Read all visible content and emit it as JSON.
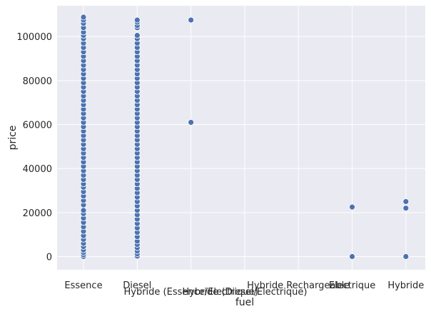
{
  "chart_data": {
    "type": "scatter",
    "xlabel": "fuel",
    "ylabel": "price",
    "ylim": [
      -6000,
      114000
    ],
    "grid": true,
    "colors": {
      "background": "#eaeaf2",
      "grid": "#ffffff",
      "marker": "#4c72b0",
      "marker_edge": "#ffffff"
    },
    "categories": [
      "Essence",
      "Diesel",
      "Hybride (Essence/Electrique)",
      "Hybride (Diesel/Electrique)",
      "Hybride Rechargeable",
      "Electrique",
      "Hybride"
    ],
    "y_ticks": [
      0,
      20000,
      40000,
      60000,
      80000,
      100000
    ],
    "y_tick_labels": [
      "0",
      "20000",
      "40000",
      "60000",
      "80000",
      "100000"
    ],
    "series": [
      {
        "category": "Essence",
        "values": [
          0,
          800,
          1800,
          3000,
          4500,
          6000,
          7800,
          9500,
          11500,
          13500,
          15500,
          17500,
          19500,
          21000,
          23500,
          25500,
          27500,
          29500,
          31500,
          33000,
          35000,
          37000,
          39000,
          41000,
          43000,
          45000,
          47000,
          49000,
          51000,
          53000,
          55000,
          57000,
          59000,
          61000,
          63000,
          65000,
          67000,
          69000,
          71000,
          73000,
          75000,
          77000,
          79000,
          81000,
          83000,
          85000,
          87000,
          89000,
          91000,
          93000,
          95000,
          97000,
          99000,
          100500,
          102000,
          104000,
          106000,
          107500,
          108800
        ]
      },
      {
        "category": "Diesel",
        "values": [
          200,
          1200,
          2500,
          4000,
          5500,
          7000,
          9000,
          11000,
          13000,
          15000,
          17000,
          19000,
          21000,
          23000,
          25000,
          27000,
          29000,
          31000,
          33000,
          35000,
          37000,
          39000,
          41000,
          43000,
          45000,
          47000,
          49000,
          51000,
          53000,
          55000,
          57000,
          59000,
          61000,
          63000,
          65000,
          67000,
          69000,
          71000,
          73000,
          75000,
          77000,
          79000,
          81000,
          83000,
          85000,
          87000,
          89000,
          91000,
          93000,
          95000,
          97000,
          99000,
          100500,
          104000,
          105000,
          106500,
          107500
        ]
      },
      {
        "category": "Hybride (Essence/Electrique)",
        "values": [
          61000,
          107500
        ]
      },
      {
        "category": "Hybride (Diesel/Electrique)",
        "values": []
      },
      {
        "category": "Hybride Rechargeable",
        "values": []
      },
      {
        "category": "Electrique",
        "values": [
          0,
          22500
        ]
      },
      {
        "category": "Hybride",
        "values": [
          0,
          22000,
          25000
        ]
      }
    ]
  }
}
